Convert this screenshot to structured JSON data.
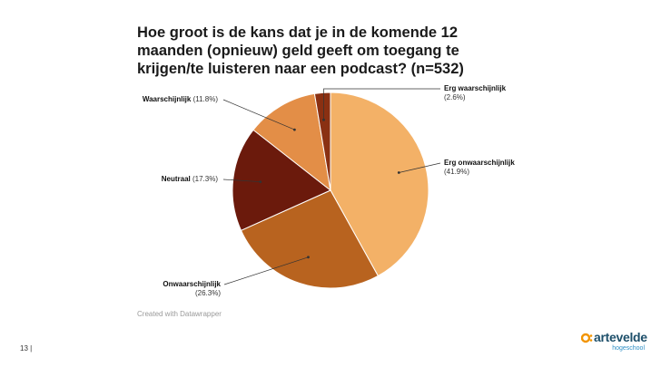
{
  "title": "Hoe groot is de kans dat je in de komende 12 maanden (opnieuw) geld geeft om toegang te krijgen/te luisteren naar een podcast? (n=532)",
  "credit": "Created with Datawrapper",
  "page_number": "13 |",
  "logo": {
    "name": "artevelde",
    "sub": "hogeschool",
    "mark_color": "#f29400",
    "name_color": "#1d4f6a"
  },
  "chart_data": {
    "type": "pie",
    "title": "Hoe groot is de kans dat je in de komende 12 maanden (opnieuw) geld geeft om toegang te krijgen/te luisteren naar een podcast? (n=532)",
    "slices": [
      {
        "label": "Erg onwaarschijnlijk",
        "value": 41.9,
        "value_label": "(41.9%)",
        "color": "#f3b167"
      },
      {
        "label": "Onwaarschijnlijk",
        "value": 26.3,
        "value_label": "(26.3%)",
        "color": "#b8631f"
      },
      {
        "label": "Neutraal",
        "value": 17.3,
        "value_label": "(17.3%)",
        "color": "#6b1a0c"
      },
      {
        "label": "Waarschijnlijk",
        "value": 11.8,
        "value_label": "(11.8%)",
        "color": "#e38e47"
      },
      {
        "label": "Erg waarschijnlijk",
        "value": 2.6,
        "value_label": "(2.6%)",
        "color": "#8a3012"
      }
    ]
  }
}
